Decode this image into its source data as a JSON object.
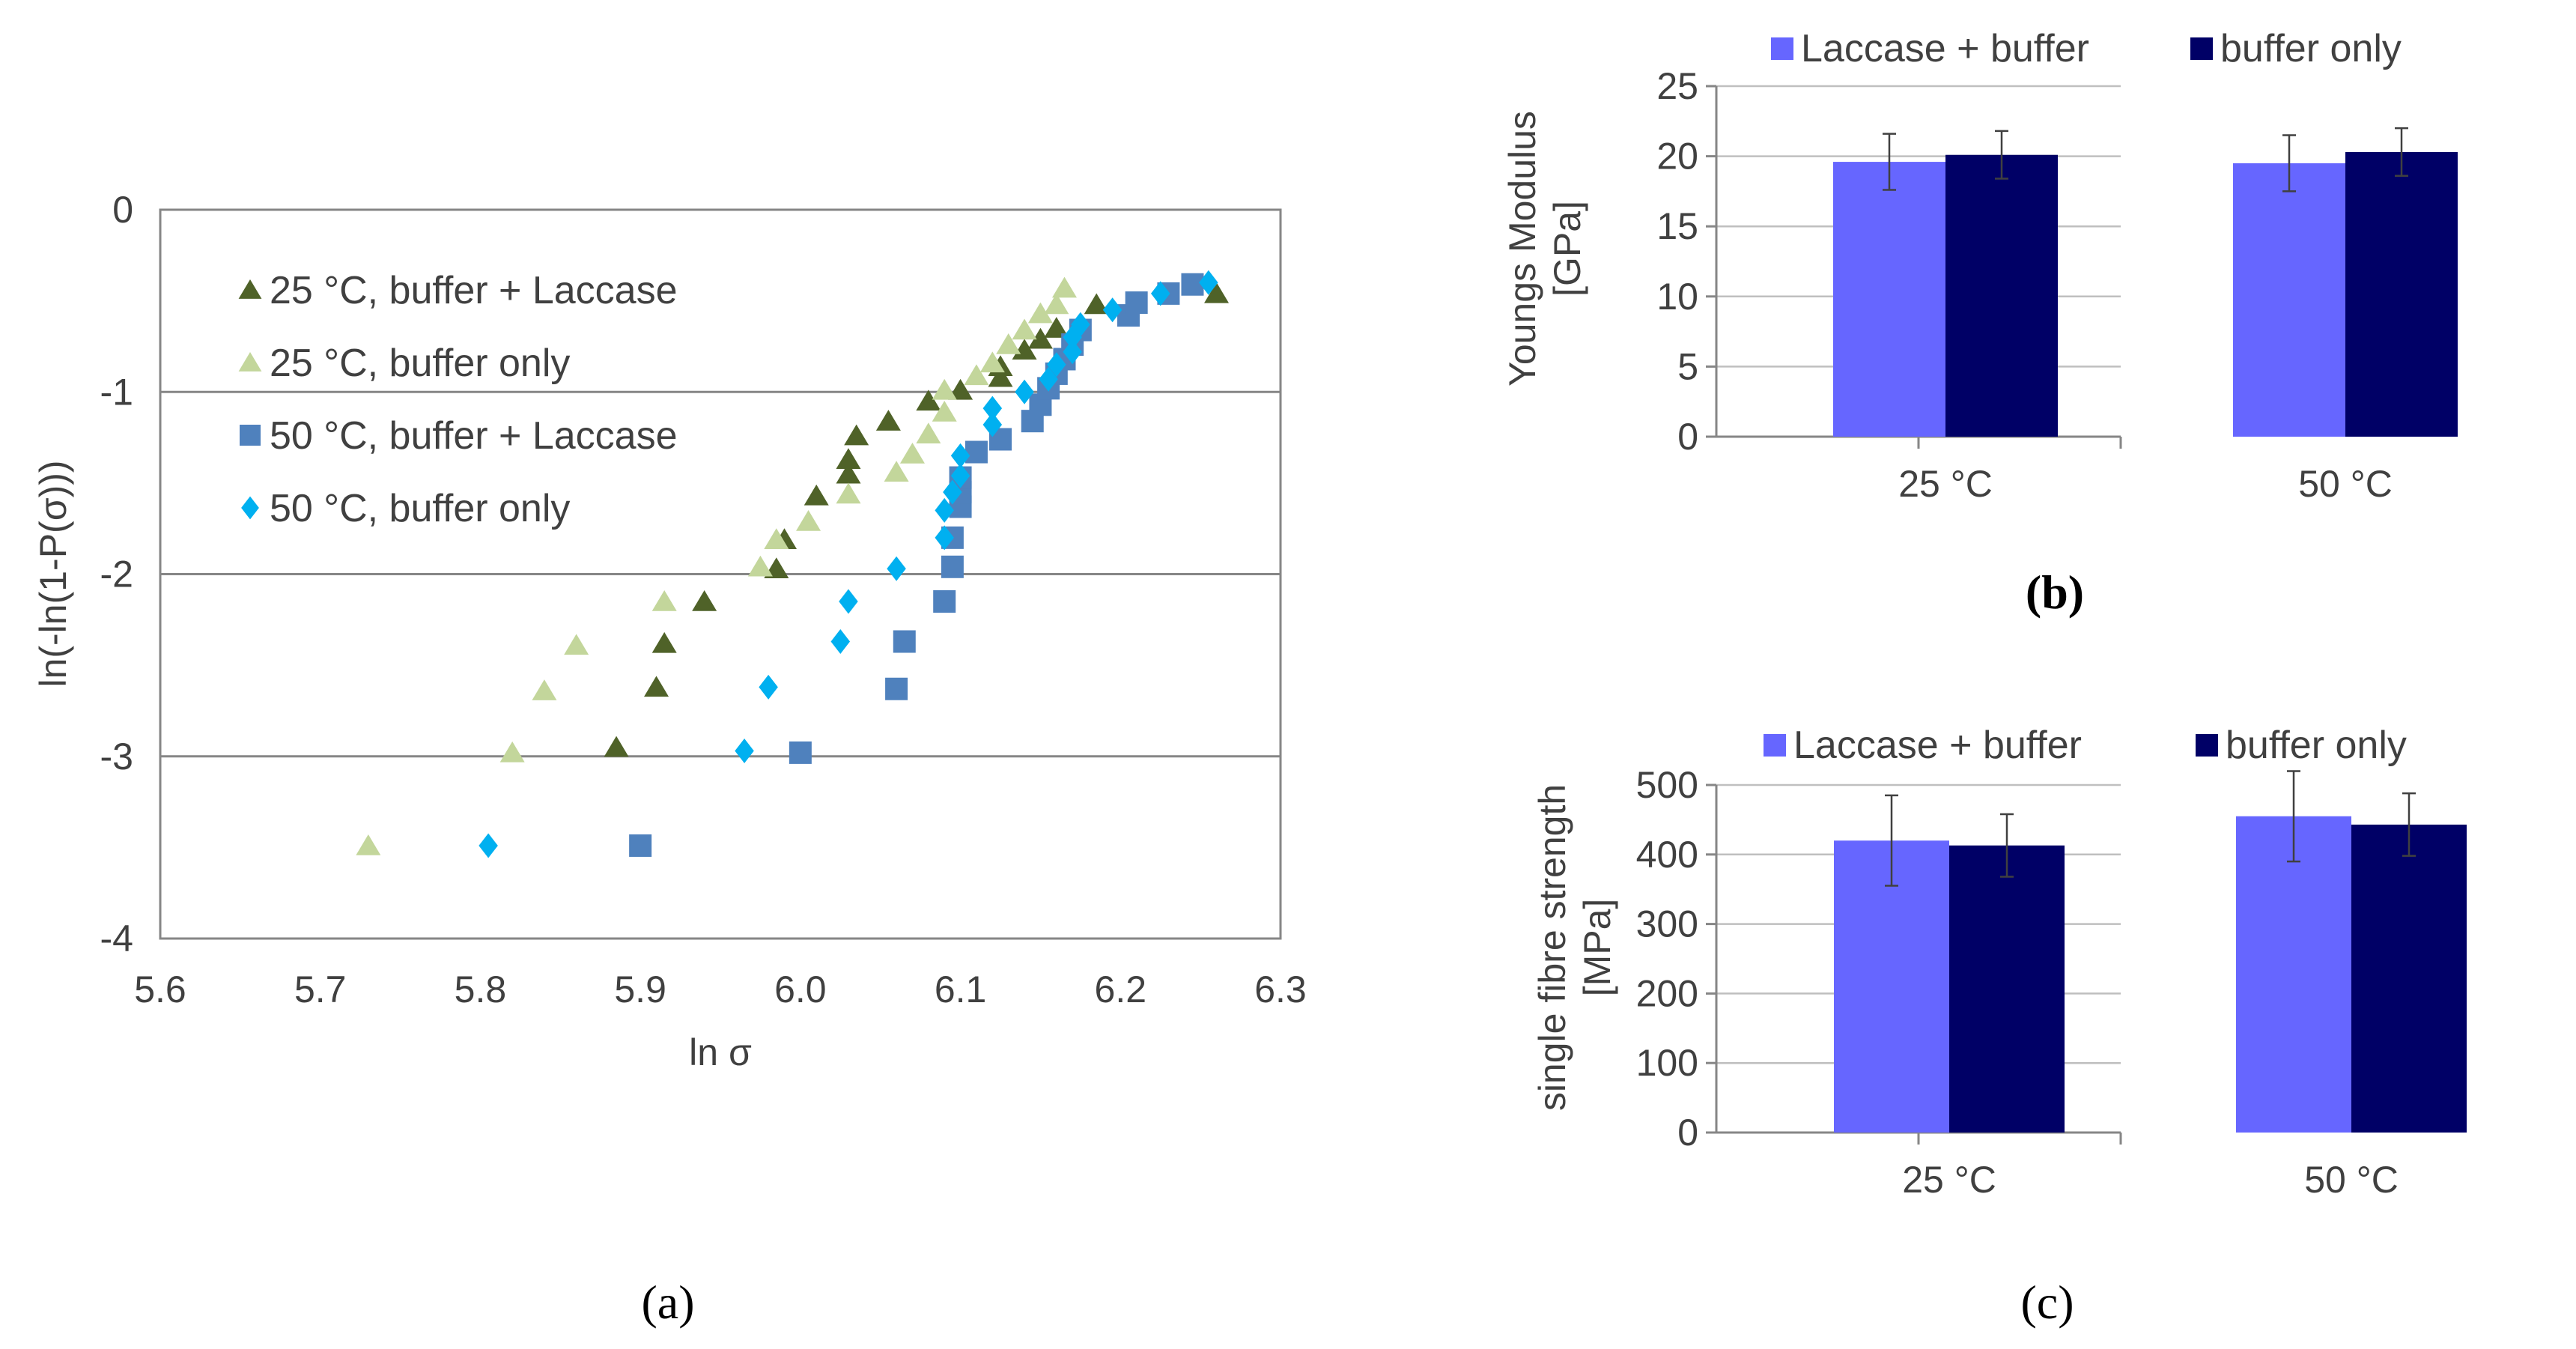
{
  "figure": {
    "panels": [
      "(a)",
      "(b)",
      "(c)"
    ]
  },
  "chart_data": [
    {
      "id": "a",
      "type": "scatter",
      "panel_label": "(a)",
      "xlabel": "ln σ",
      "ylabel": "ln(-ln(1-P(σ)))",
      "xlim": [
        5.6,
        6.3
      ],
      "ylim": [
        -4,
        0
      ],
      "xticks": [
        "5.6",
        "5.7",
        "5.8",
        "5.9",
        "6.0",
        "6.1",
        "6.2",
        "6.3"
      ],
      "yticks": [
        "0",
        "-1",
        "-2",
        "-3",
        "-4"
      ],
      "grid": "horizontal at -1, -2, -3",
      "legend_position": "top-left",
      "series": [
        {
          "name": "25 °C, buffer + Laccase",
          "marker": "triangle",
          "color": "#4f6228",
          "points": [
            [
              5.885,
              -2.95
            ],
            [
              5.91,
              -2.62
            ],
            [
              5.915,
              -2.38
            ],
            [
              5.94,
              -2.15
            ],
            [
              5.985,
              -1.97
            ],
            [
              5.99,
              -1.81
            ],
            [
              6.01,
              -1.57
            ],
            [
              6.03,
              -1.45
            ],
            [
              6.03,
              -1.37
            ],
            [
              6.035,
              -1.24
            ],
            [
              6.055,
              -1.16
            ],
            [
              6.08,
              -1.05
            ],
            [
              6.1,
              -0.99
            ],
            [
              6.125,
              -0.92
            ],
            [
              6.125,
              -0.86
            ],
            [
              6.14,
              -0.77
            ],
            [
              6.15,
              -0.71
            ],
            [
              6.16,
              -0.65
            ],
            [
              6.185,
              -0.52
            ],
            [
              6.26,
              -0.46
            ]
          ]
        },
        {
          "name": "25 °C, buffer only",
          "marker": "triangle",
          "color": "#c3d69b",
          "points": [
            [
              5.73,
              -3.49
            ],
            [
              5.82,
              -2.98
            ],
            [
              5.84,
              -2.64
            ],
            [
              5.86,
              -2.39
            ],
            [
              5.915,
              -2.15
            ],
            [
              5.975,
              -1.96
            ],
            [
              5.985,
              -1.81
            ],
            [
              6.005,
              -1.71
            ],
            [
              6.03,
              -1.56
            ],
            [
              6.06,
              -1.44
            ],
            [
              6.07,
              -1.34
            ],
            [
              6.08,
              -1.23
            ],
            [
              6.09,
              -1.11
            ],
            [
              6.09,
              -0.99
            ],
            [
              6.11,
              -0.91
            ],
            [
              6.12,
              -0.84
            ],
            [
              6.13,
              -0.74
            ],
            [
              6.14,
              -0.66
            ],
            [
              6.15,
              -0.57
            ],
            [
              6.16,
              -0.52
            ],
            [
              6.165,
              -0.43
            ]
          ]
        },
        {
          "name": "50 °C, buffer + Laccase",
          "marker": "square",
          "color": "#4f81bd",
          "points": [
            [
              5.9,
              -3.49
            ],
            [
              6.0,
              -2.98
            ],
            [
              6.06,
              -2.63
            ],
            [
              6.065,
              -2.37
            ],
            [
              6.09,
              -2.15
            ],
            [
              6.095,
              -1.96
            ],
            [
              6.095,
              -1.8
            ],
            [
              6.1,
              -1.63
            ],
            [
              6.1,
              -1.55
            ],
            [
              6.1,
              -1.47
            ],
            [
              6.11,
              -1.33
            ],
            [
              6.125,
              -1.26
            ],
            [
              6.145,
              -1.16
            ],
            [
              6.15,
              -1.07
            ],
            [
              6.155,
              -0.98
            ],
            [
              6.16,
              -0.9
            ],
            [
              6.165,
              -0.82
            ],
            [
              6.17,
              -0.74
            ],
            [
              6.175,
              -0.66
            ],
            [
              6.205,
              -0.58
            ],
            [
              6.21,
              -0.51
            ],
            [
              6.23,
              -0.46
            ],
            [
              6.245,
              -0.41
            ]
          ]
        },
        {
          "name": "50 °C, buffer only",
          "marker": "diamond",
          "color": "#00b0f0",
          "points": [
            [
              5.805,
              -3.49
            ],
            [
              5.965,
              -2.97
            ],
            [
              5.98,
              -2.62
            ],
            [
              6.025,
              -2.37
            ],
            [
              6.03,
              -2.15
            ],
            [
              6.06,
              -1.97
            ],
            [
              6.09,
              -1.8
            ],
            [
              6.09,
              -1.65
            ],
            [
              6.095,
              -1.55
            ],
            [
              6.1,
              -1.46
            ],
            [
              6.1,
              -1.35
            ],
            [
              6.12,
              -1.18
            ],
            [
              6.12,
              -1.09
            ],
            [
              6.14,
              -1.0
            ],
            [
              6.155,
              -0.93
            ],
            [
              6.16,
              -0.85
            ],
            [
              6.17,
              -0.78
            ],
            [
              6.17,
              -0.7
            ],
            [
              6.175,
              -0.63
            ],
            [
              6.195,
              -0.55
            ],
            [
              6.225,
              -0.46
            ],
            [
              6.255,
              -0.4
            ]
          ]
        }
      ]
    },
    {
      "id": "b",
      "type": "bar",
      "panel_label": "(b)",
      "ylabel": "Youngs Modulus [GPa]",
      "ylabel_lines": [
        "Youngs Modulus",
        "[GPa]"
      ],
      "categories": [
        "25 °C",
        "50 °C"
      ],
      "ylim": [
        0,
        25
      ],
      "yticks": [
        "0",
        "5",
        "10",
        "15",
        "20",
        "25"
      ],
      "grid": "horizontal",
      "legend_position": "top",
      "series": [
        {
          "name": "Laccase + buffer",
          "color": "#6666ff",
          "values": [
            19.6,
            19.5
          ],
          "errors": [
            2.0,
            2.0
          ]
        },
        {
          "name": "buffer only",
          "color": "#000066",
          "values": [
            20.1,
            20.3
          ],
          "errors": [
            1.7,
            1.7
          ]
        }
      ]
    },
    {
      "id": "c",
      "type": "bar",
      "panel_label": "(c)",
      "ylabel": "single fibre strength [MPa]",
      "ylabel_lines": [
        "single fibre strength",
        "[MPa]"
      ],
      "categories": [
        "25 °C",
        "50 °C"
      ],
      "ylim": [
        0,
        500
      ],
      "yticks": [
        "0",
        "100",
        "200",
        "300",
        "400",
        "500"
      ],
      "grid": "horizontal",
      "legend_position": "top",
      "series": [
        {
          "name": "Laccase + buffer",
          "color": "#6666ff",
          "values": [
            420,
            455
          ],
          "errors": [
            65,
            65
          ]
        },
        {
          "name": "buffer only",
          "color": "#000066",
          "values": [
            413,
            443
          ],
          "errors": [
            45,
            45
          ]
        }
      ]
    }
  ]
}
